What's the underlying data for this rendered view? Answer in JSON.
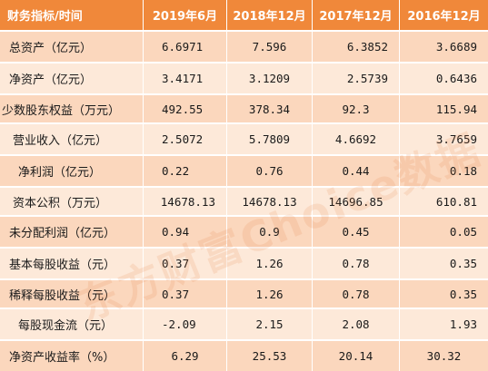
{
  "table": {
    "headers": [
      "财务指标/时间",
      "2019年6月",
      "2018年12月",
      "2017年12月",
      "2016年12月"
    ],
    "rows": [
      {
        "label": "总资产（亿元）",
        "values": [
          "6.6971",
          "7.596",
          "6.3852",
          "3.6689"
        ]
      },
      {
        "label": "净资产（亿元）",
        "values": [
          "3.4171",
          "3.1209",
          "2.5739",
          "0.6436"
        ]
      },
      {
        "label": "少数股东权益（万元）",
        "values": [
          "492.55",
          "378.34",
          "92.3",
          "115.94"
        ]
      },
      {
        "label": "营业收入（亿元）",
        "values": [
          "2.5072",
          "5.7809",
          "4.6692",
          "3.7659"
        ]
      },
      {
        "label": "净利润（亿元）",
        "values": [
          "0.22",
          "0.76",
          "0.44",
          "0.18"
        ]
      },
      {
        "label": "资本公积（万元）",
        "values": [
          "14678.13",
          "14678.13",
          "14696.85",
          "610.81"
        ]
      },
      {
        "label": "未分配利润（亿元）",
        "values": [
          "0.94",
          "0.9",
          "0.45",
          "0.05"
        ]
      },
      {
        "label": "基本每股收益（元）",
        "values": [
          "0.37",
          "1.26",
          "0.78",
          "0.35"
        ]
      },
      {
        "label": "稀释每股收益（元）",
        "values": [
          "0.37",
          "1.26",
          "0.78",
          "0.35"
        ]
      },
      {
        "label": "每股现金流（元）",
        "values": [
          "-2.09",
          "2.15",
          "2.08",
          "1.93"
        ]
      },
      {
        "label": "净资产收益率（%）",
        "values": [
          "6.29",
          "25.53",
          "20.14",
          "30.32"
        ]
      }
    ]
  },
  "watermark": "东方财富Choice数据",
  "colors": {
    "header_bg": "#f0883a",
    "row_dark": "#fbd7bd",
    "row_light": "#fde9d9",
    "header_text": "#ffffff"
  }
}
